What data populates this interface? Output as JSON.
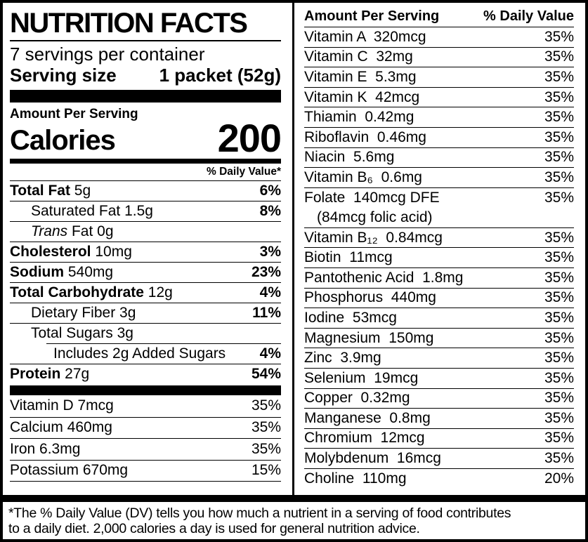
{
  "header": {
    "title": "NUTRITION FACTS",
    "servings_per_container": "7 servings per container",
    "serving_size_label": "Serving size",
    "serving_size_value": "1 packet (52g)",
    "amount_per_serving": "Amount Per Serving",
    "calories_label": "Calories",
    "calories_value": "200",
    "daily_value_note": "% Daily Value*"
  },
  "left_main_rows": [
    {
      "parts": [
        {
          "t": "Total Fat",
          "b": true
        },
        {
          "t": " 5g"
        }
      ],
      "pct": "6%",
      "indent": 0
    },
    {
      "parts": [
        {
          "t": "Saturated Fat 1.5g"
        }
      ],
      "pct": "8%",
      "indent": 1
    },
    {
      "parts": [
        {
          "t": "Trans",
          "i": true
        },
        {
          "t": " Fat 0g"
        }
      ],
      "pct": "",
      "indent": 1
    },
    {
      "parts": [
        {
          "t": "Cholesterol",
          "b": true
        },
        {
          "t": " 10mg"
        }
      ],
      "pct": "3%",
      "indent": 0
    },
    {
      "parts": [
        {
          "t": "Sodium",
          "b": true
        },
        {
          "t": " 540mg"
        }
      ],
      "pct": "23%",
      "indent": 0
    },
    {
      "parts": [
        {
          "t": "Total Carbohydrate",
          "b": true
        },
        {
          "t": " 12g"
        }
      ],
      "pct": "4%",
      "indent": 0
    },
    {
      "parts": [
        {
          "t": "Dietary Fiber 3g"
        }
      ],
      "pct": "11%",
      "indent": 1
    },
    {
      "parts": [
        {
          "t": "Total Sugars 3g"
        }
      ],
      "pct": "",
      "indent": 1
    },
    {
      "parts": [
        {
          "t": "Includes 2g Added Sugars"
        }
      ],
      "pct": "4%",
      "indent": 2,
      "rule": "partial"
    },
    {
      "parts": [
        {
          "t": "Protein",
          "b": true
        },
        {
          "t": " 27g"
        }
      ],
      "pct": "54%",
      "indent": 0
    }
  ],
  "left_vitamin_rows": [
    {
      "name": "Vitamin D 7mcg",
      "pct": "35%"
    },
    {
      "name": "Calcium 460mg",
      "pct": "35%"
    },
    {
      "name": "Iron 6.3mg",
      "pct": "35%"
    },
    {
      "name": "Potassium 670mg",
      "pct": "15%"
    }
  ],
  "right_column": {
    "header_left": "Amount Per Serving",
    "header_right": "% Daily Value",
    "rows": [
      {
        "name": "Vitamin A  320mcg",
        "pct": "35%"
      },
      {
        "name": "Vitamin C  32mg",
        "pct": "35%"
      },
      {
        "name": "Vitamin E  5.3mg",
        "pct": "35%"
      },
      {
        "name": "Vitamin K  42mcg",
        "pct": "35%"
      },
      {
        "name": "Thiamin  0.42mg",
        "pct": "35%"
      },
      {
        "name": "Riboflavin  0.46mg",
        "pct": "35%"
      },
      {
        "name": "Niacin  5.6mg",
        "pct": "35%"
      },
      {
        "name": "Vitamin B₆  0.6mg",
        "pct": "35%"
      },
      {
        "name": "Folate  140mcg DFE",
        "pct": "35%",
        "line2": "(84mcg folic acid)"
      },
      {
        "name": "Vitamin B₁₂  0.84mcg",
        "pct": "35%"
      },
      {
        "name": "Biotin  11mcg",
        "pct": "35%"
      },
      {
        "name": "Pantothenic Acid  1.8mg",
        "pct": "35%"
      },
      {
        "name": "Phosphorus  440mg",
        "pct": "35%"
      },
      {
        "name": "Iodine  53mcg",
        "pct": "35%"
      },
      {
        "name": "Magnesium  150mg",
        "pct": "35%"
      },
      {
        "name": "Zinc  3.9mg",
        "pct": "35%"
      },
      {
        "name": "Selenium  19mcg",
        "pct": "35%"
      },
      {
        "name": "Copper  0.32mg",
        "pct": "35%"
      },
      {
        "name": "Manganese  0.8mg",
        "pct": "35%"
      },
      {
        "name": "Chromium  12mcg",
        "pct": "35%"
      },
      {
        "name": "Molybdenum  16mcg",
        "pct": "35%"
      },
      {
        "name": "Choline  110mg",
        "pct": "20%"
      }
    ]
  },
  "footnote": "*The % Daily Value (DV) tells you how much a nutrient in a serving of food contributes\nto a daily diet. 2,000 calories a day is used for general nutrition advice."
}
